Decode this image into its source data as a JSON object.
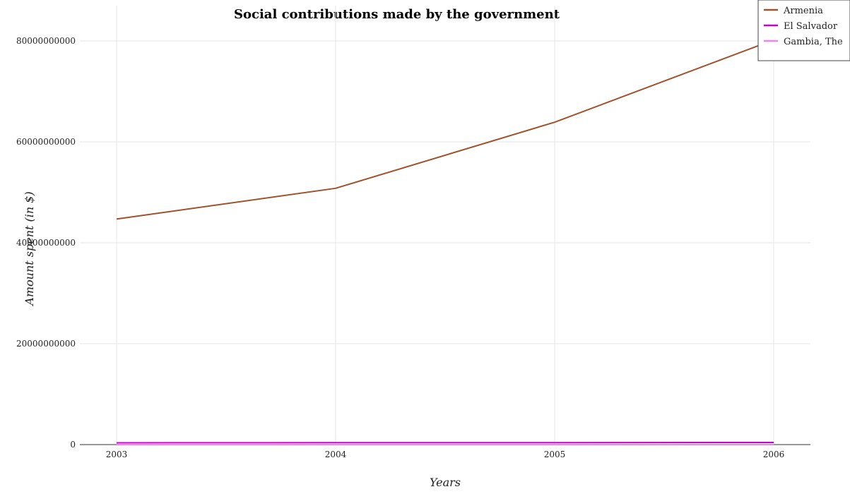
{
  "chart_data": {
    "type": "line",
    "title": "Social contributions made by the government",
    "xlabel": "Years",
    "ylabel": "Amount spent (in $)",
    "categories": [
      "2003",
      "2004",
      "2005",
      "2006"
    ],
    "y_ticks": [
      "0",
      "20000000000",
      "40000000000",
      "60000000000",
      "80000000000"
    ],
    "ylim": [
      0,
      87000000000
    ],
    "grid": true,
    "legend_position": "top-right",
    "series": [
      {
        "name": "Armenia",
        "color": "#a0522d",
        "values": [
          44700000000,
          50800000000,
          63900000000,
          80200000000
        ]
      },
      {
        "name": "El Salvador",
        "color": "#cc00cc",
        "values": [
          350000000,
          385000000,
          390000000,
          420000000
        ]
      },
      {
        "name": "Gambia, The",
        "color": "#ee82ee",
        "values": [
          3500000,
          4000000,
          4500000,
          5000000
        ]
      }
    ]
  }
}
